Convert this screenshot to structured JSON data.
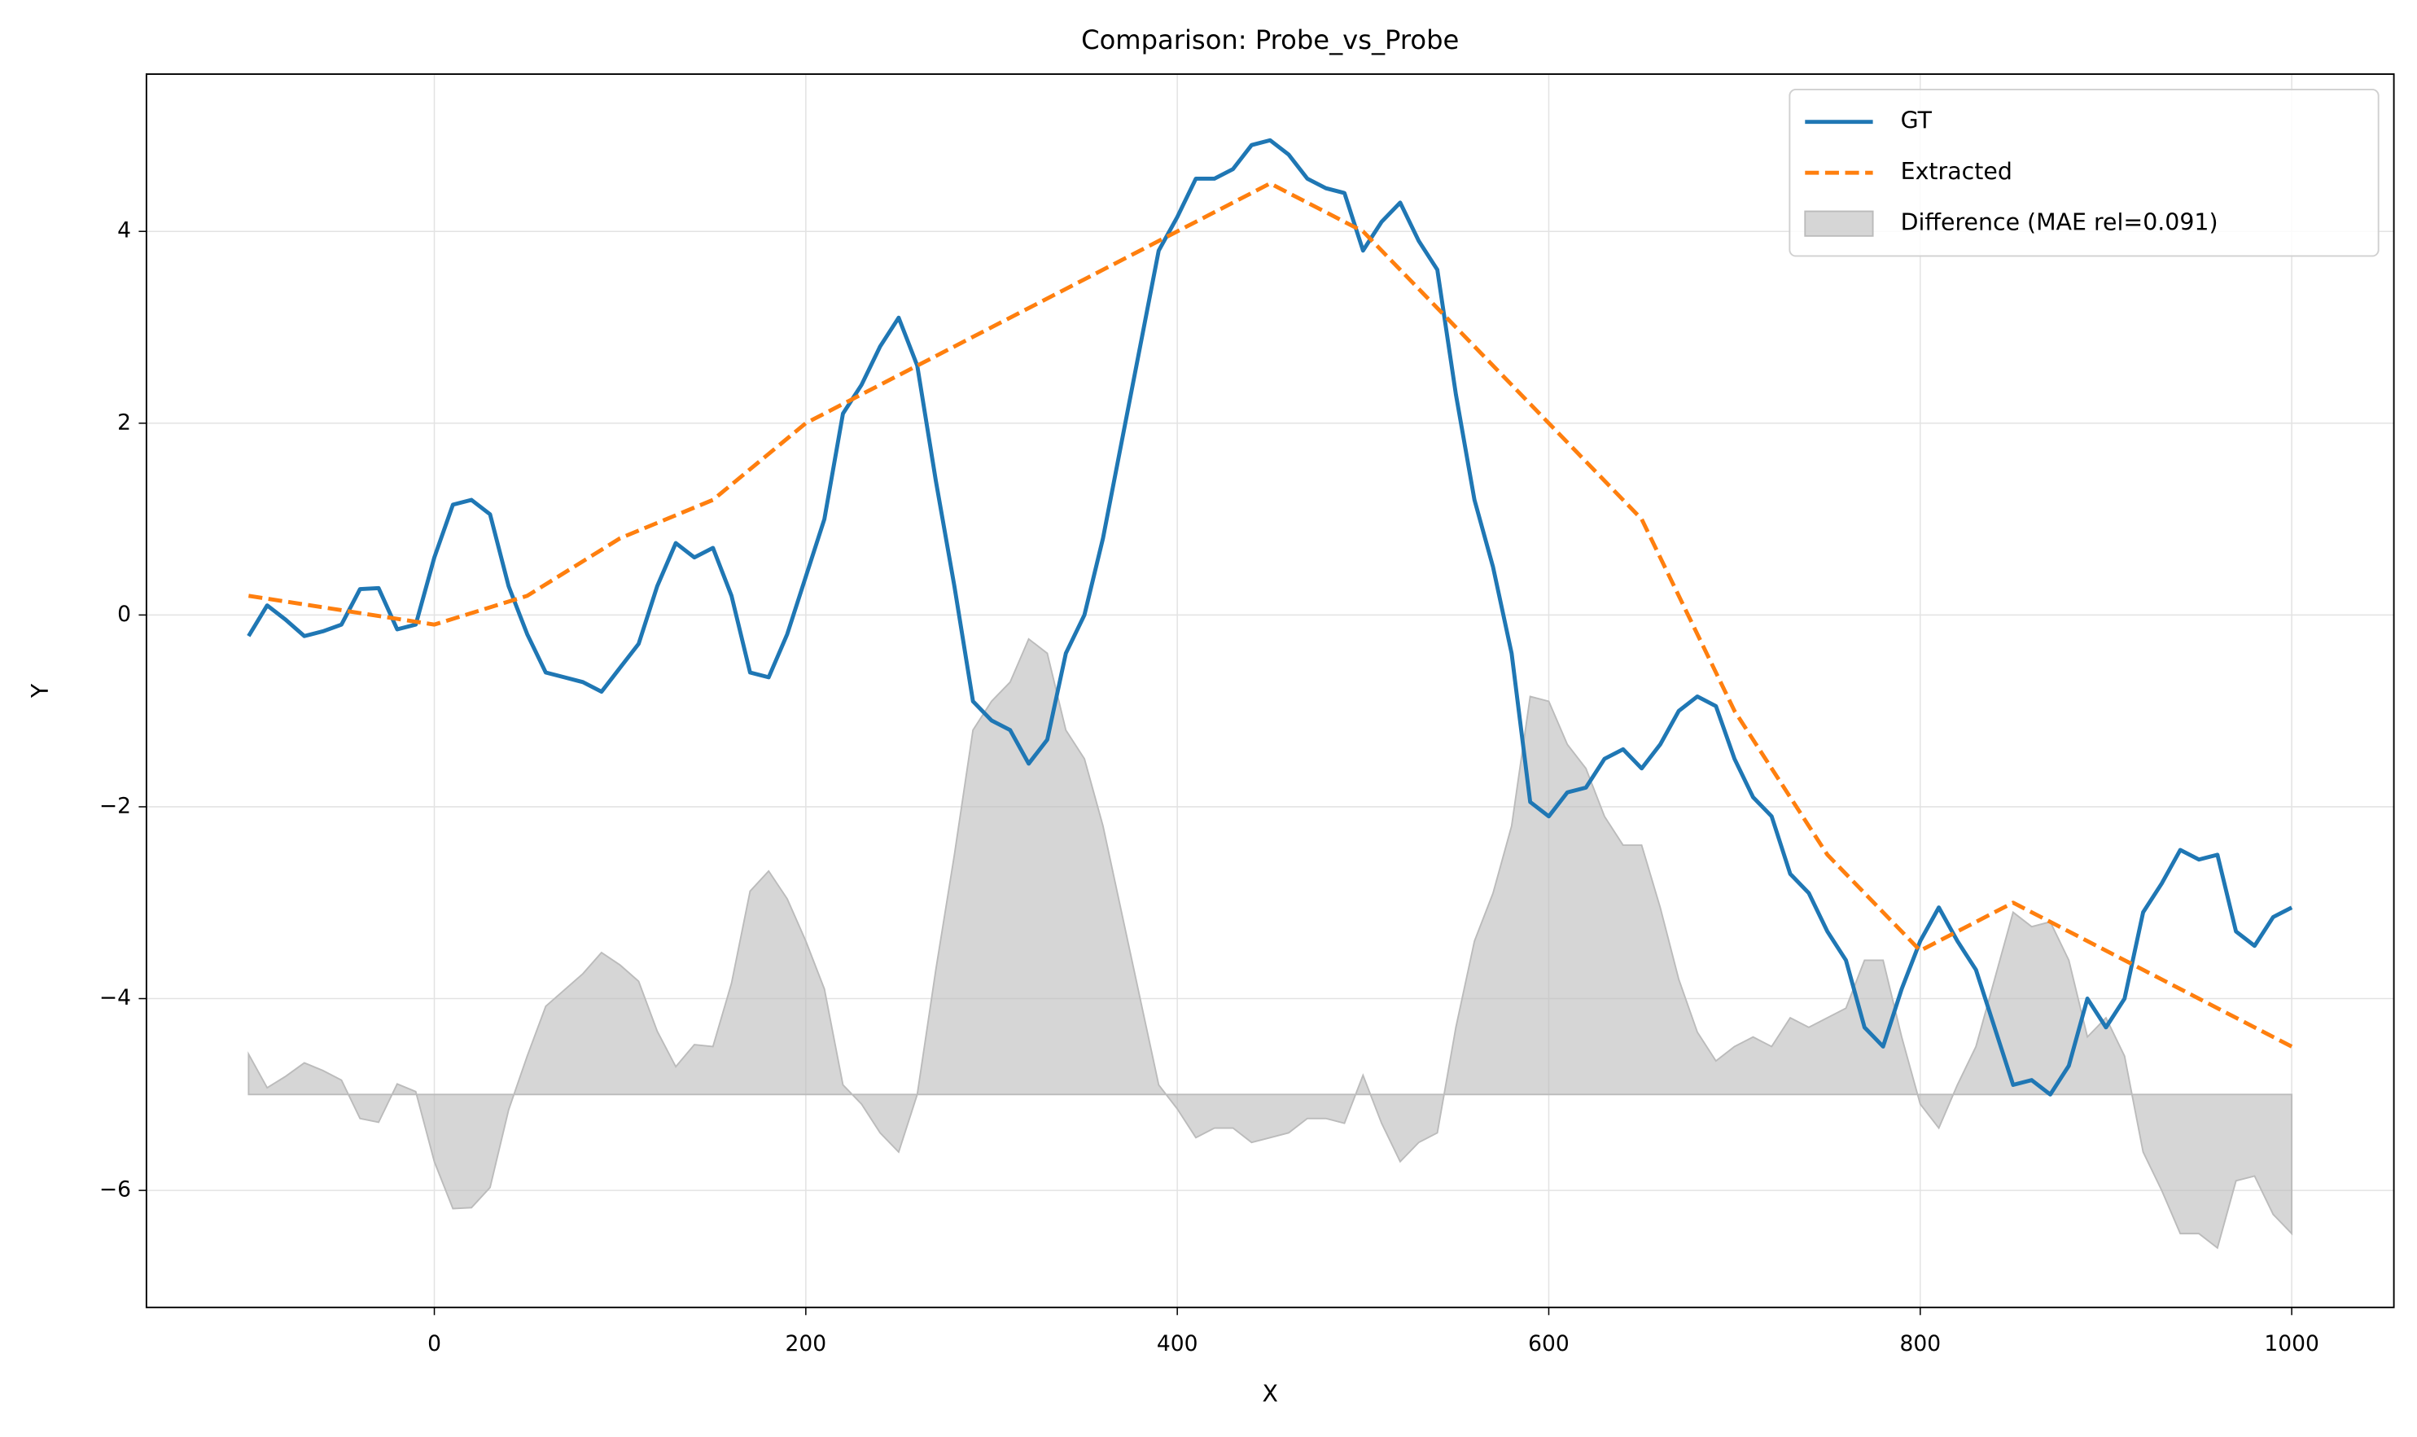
{
  "chart_data": {
    "type": "line",
    "title": "Comparison: Probe_vs_Probe",
    "xlabel": "X",
    "ylabel": "Y",
    "x": [
      -100,
      -90,
      -80,
      -70,
      -60,
      -50,
      -40,
      -30,
      -20,
      -10,
      0,
      10,
      20,
      30,
      40,
      50,
      60,
      70,
      80,
      90,
      100,
      110,
      120,
      130,
      140,
      150,
      160,
      170,
      180,
      190,
      200,
      210,
      220,
      230,
      240,
      250,
      260,
      270,
      280,
      290,
      300,
      310,
      320,
      330,
      340,
      350,
      360,
      370,
      380,
      390,
      400,
      410,
      420,
      430,
      440,
      450,
      460,
      470,
      480,
      490,
      500,
      510,
      520,
      530,
      540,
      550,
      560,
      570,
      580,
      590,
      600,
      610,
      620,
      630,
      640,
      650,
      660,
      670,
      680,
      690,
      700,
      710,
      720,
      730,
      740,
      750,
      760,
      770,
      780,
      790,
      800,
      810,
      820,
      830,
      840,
      850,
      860,
      870,
      880,
      890,
      900,
      910,
      920,
      930,
      940,
      950,
      960,
      970,
      980,
      990,
      1000
    ],
    "series": [
      {
        "name": "GT",
        "color": "#1f77b4",
        "style": "solid",
        "values": [
          -0.22,
          0.1,
          -0.05,
          -0.22,
          -0.17,
          -0.1,
          0.27,
          0.28,
          -0.15,
          -0.1,
          0.6,
          1.15,
          1.2,
          1.05,
          0.3,
          -0.2,
          -0.6,
          -0.65,
          -0.7,
          -0.8,
          -0.55,
          -0.3,
          0.3,
          0.75,
          0.6,
          0.7,
          0.2,
          -0.6,
          -0.65,
          -0.2,
          0.4,
          1.0,
          2.1,
          2.4,
          2.8,
          3.1,
          2.6,
          1.4,
          0.3,
          -0.9,
          -1.1,
          -1.2,
          -1.55,
          -1.3,
          -0.4,
          0,
          0.8,
          1.8,
          2.8,
          3.8,
          4.15,
          4.55,
          4.55,
          4.65,
          4.9,
          4.95,
          4.8,
          4.55,
          4.45,
          4.4,
          3.8,
          4.1,
          4.3,
          3.9,
          3.6,
          2.3,
          1.2,
          0.5,
          -0.4,
          -1.95,
          -2.1,
          -1.85,
          -1.8,
          -1.5,
          -1.4,
          -1.6,
          -1.35,
          -1.0,
          -0.85,
          -0.95,
          -1.5,
          -1.9,
          -2.1,
          -2.7,
          -2.9,
          -3.3,
          -3.6,
          -4.3,
          -4.5,
          -3.9,
          -3.4,
          -3.05,
          -3.4,
          -3.7,
          -4.3,
          -4.9,
          -4.85,
          -5.0,
          -4.7,
          -4.0,
          -4.3,
          -4.0,
          -3.1,
          -2.8,
          -2.45,
          -2.55,
          -2.5,
          -3.3,
          -3.45,
          -3.15,
          -3.05
        ]
      },
      {
        "name": "Extracted",
        "color": "#ff7f0e",
        "style": "dashed",
        "x": [
          -100,
          0,
          50,
          100,
          150,
          200,
          450,
          500,
          650,
          700,
          750,
          800,
          850,
          1000
        ],
        "values": [
          0.2,
          -0.1,
          0.2,
          0.8,
          1.2,
          2.0,
          4.5,
          4.0,
          1.0,
          -1.0,
          -2.5,
          -3.5,
          -3.0,
          -4.5
        ]
      },
      {
        "name": "Difference (MAE rel=0.091)",
        "color": "#bbbbbb",
        "style": "area",
        "baseline": -5,
        "values": [
          -4.58,
          -4.93,
          -4.81,
          -4.67,
          -4.75,
          -4.85,
          -5.25,
          -5.29,
          -4.89,
          -4.97,
          -5.7,
          -6.19,
          -6.18,
          -5.97,
          -5.16,
          -4.6,
          -4.08,
          -3.91,
          -3.74,
          -3.52,
          -3.65,
          -3.82,
          -4.34,
          -4.71,
          -4.48,
          -4.5,
          -3.84,
          -2.88,
          -2.67,
          -2.96,
          -3.4,
          -3.9,
          -4.9,
          -5.1,
          -5.4,
          -5.6,
          -5.0,
          -3.7,
          -2.5,
          -1.2,
          -0.9,
          -0.7,
          -0.25,
          -0.4,
          -1.2,
          -1.5,
          -2.2,
          -3.1,
          -4.0,
          -4.9,
          -5.15,
          -5.45,
          -5.35,
          -5.35,
          -5.5,
          -5.45,
          -5.4,
          -5.25,
          -5.25,
          -5.3,
          -4.8,
          -5.3,
          -5.7,
          -5.5,
          -5.4,
          -4.3,
          -3.4,
          -2.9,
          -2.2,
          -0.85,
          -0.9,
          -1.35,
          -1.6,
          -2.1,
          -2.4,
          -2.4,
          -3.05,
          -3.8,
          -4.35,
          -4.65,
          -4.5,
          -4.4,
          -4.5,
          -4.2,
          -4.3,
          -4.2,
          -4.1,
          -3.6,
          -3.6,
          -4.4,
          -5.1,
          -5.35,
          -4.9,
          -4.5,
          -3.8,
          -3.1,
          -3.25,
          -3.2,
          -3.6,
          -4.4,
          -4.2,
          -4.6,
          -5.6,
          -6.0,
          -6.45,
          -6.45,
          -6.6,
          -5.9,
          -5.85,
          -6.25,
          -6.45
        ]
      }
    ],
    "xlim": [
      -155,
      1055
    ],
    "ylim": [
      -7.22,
      5.64
    ],
    "xticks": [
      0,
      200,
      400,
      600,
      800,
      1000
    ],
    "yticks": [
      {
        "value": -6,
        "label": "−6"
      },
      {
        "value": -4,
        "label": "−4"
      },
      {
        "value": -2,
        "label": "−2"
      },
      0,
      2,
      4
    ],
    "grid": true,
    "legend": "upper right"
  }
}
